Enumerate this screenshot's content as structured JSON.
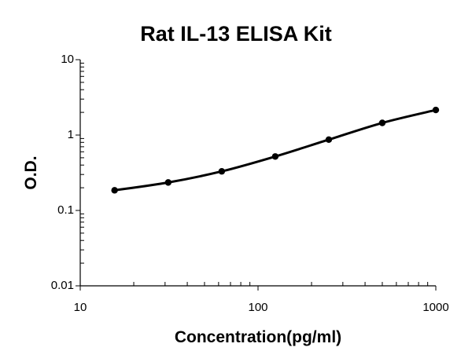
{
  "chart_data": {
    "type": "scatter",
    "title": "Rat IL-13 ELISA Kit",
    "xlabel": "Concentration(pg/ml)",
    "ylabel": "O.D.",
    "x_scale": "log",
    "y_scale": "log",
    "xlim": [
      10,
      1000
    ],
    "ylim": [
      0.01,
      10
    ],
    "x_ticks": [
      "10",
      "100",
      "1000"
    ],
    "y_ticks": [
      "0.01",
      "0.1",
      "1",
      "10"
    ],
    "grid": false,
    "legend": "none",
    "line_color": "#000000",
    "series": [
      {
        "x": [
          15.6,
          31.25,
          62.5,
          125,
          250,
          500,
          1000
        ],
        "y": [
          0.185,
          0.235,
          0.33,
          0.52,
          0.87,
          1.45,
          2.15
        ]
      }
    ]
  }
}
